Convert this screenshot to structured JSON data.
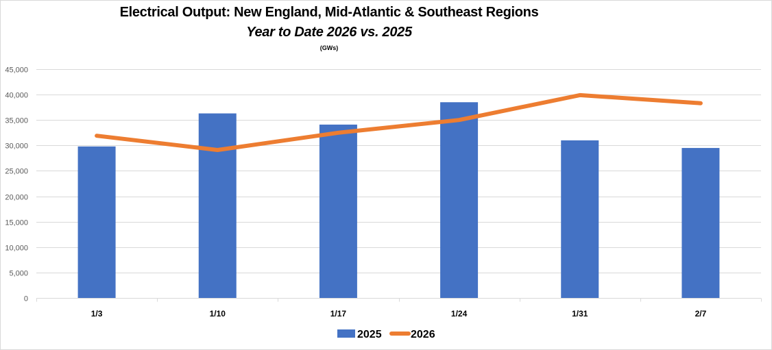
{
  "chart_data": {
    "type": "bar+line",
    "title": "Electrical Output:  New England, Mid-Atlantic & Southeast Regions",
    "subtitle": "Year to Date 2026 vs. 2025",
    "unit_label": "(GWs)",
    "xlabel": "",
    "ylabel": "",
    "categories": [
      "1/3",
      "1/10",
      "1/17",
      "1/24",
      "1/31",
      "2/7"
    ],
    "ylim": [
      0,
      45000
    ],
    "yticks": [
      0,
      5000,
      10000,
      15000,
      20000,
      25000,
      30000,
      35000,
      40000,
      45000
    ],
    "ytick_labels": [
      "0",
      "5,000",
      "10,000",
      "15,000",
      "20,000",
      "25,000",
      "30,000",
      "35,000",
      "40,000",
      "45,000"
    ],
    "grid": true,
    "legend_position": "bottom",
    "series": [
      {
        "name": "2025",
        "type": "bar",
        "color": "#4472c4",
        "values": [
          29800,
          36300,
          34100,
          38500,
          31000,
          29500
        ]
      },
      {
        "name": "2026",
        "type": "line",
        "color": "#ed7d31",
        "values": [
          31900,
          29100,
          32500,
          35000,
          39900,
          38300
        ]
      }
    ]
  }
}
